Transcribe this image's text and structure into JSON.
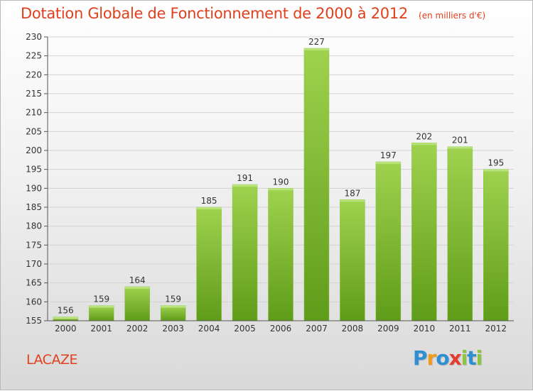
{
  "title": "Dotation Globale de Fonctionnement de 2000 à 2012",
  "subtitle": "(en milliers d'€)",
  "commune": "LACAZE",
  "logo": {
    "text": "Proxiti",
    "letters": [
      {
        "char": "P",
        "color": "#2f8fd0"
      },
      {
        "char": "r",
        "color": "#f29a1b"
      },
      {
        "char": "o",
        "color": "#2f8fd0"
      },
      {
        "char": "x",
        "color": "#e63c2e"
      },
      {
        "char": "i",
        "color": "#8cc63f"
      },
      {
        "char": "t",
        "color": "#2f8fd0"
      },
      {
        "char": "i",
        "color": "#8cc63f"
      }
    ]
  },
  "colors": {
    "accent": "#e1401d",
    "bar_top": "#9fd24f",
    "bar_bottom": "#5f9c19"
  },
  "chart_data": {
    "type": "bar",
    "title": "Dotation Globale de Fonctionnement de 2000 à 2012",
    "subtitle": "(en milliers d'€)",
    "categories": [
      "2000",
      "2001",
      "2002",
      "2003",
      "2004",
      "2005",
      "2006",
      "2007",
      "2008",
      "2009",
      "2010",
      "2011",
      "2012"
    ],
    "values": [
      156,
      159,
      164,
      159,
      185,
      191,
      190,
      227,
      187,
      197,
      202,
      201,
      195
    ],
    "ylim": [
      155,
      230
    ],
    "yticks": [
      155,
      160,
      165,
      170,
      175,
      180,
      185,
      190,
      195,
      200,
      205,
      210,
      215,
      220,
      225,
      230
    ],
    "grid": true,
    "data_labels": true,
    "legend": "none"
  }
}
